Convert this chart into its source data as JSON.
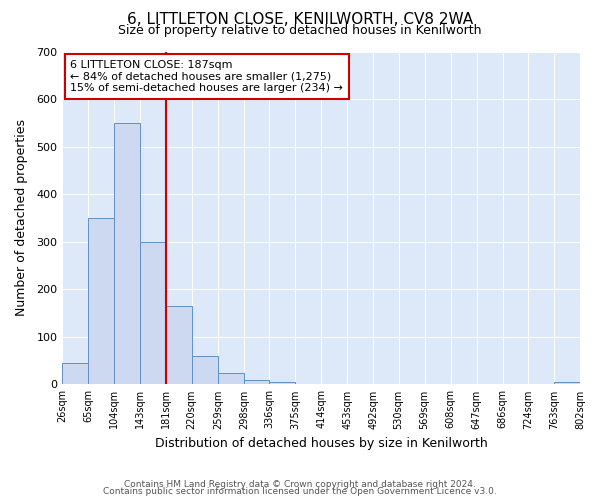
{
  "title": "6, LITTLETON CLOSE, KENILWORTH, CV8 2WA",
  "subtitle": "Size of property relative to detached houses in Kenilworth",
  "xlabel": "Distribution of detached houses by size in Kenilworth",
  "ylabel": "Number of detached properties",
  "footer_line1": "Contains HM Land Registry data © Crown copyright and database right 2024.",
  "footer_line2": "Contains public sector information licensed under the Open Government Licence v3.0.",
  "bin_edges": [
    26,
    65,
    104,
    143,
    181,
    220,
    259,
    298,
    336,
    375,
    414,
    453,
    492,
    530,
    569,
    608,
    647,
    686,
    724,
    763,
    802
  ],
  "bin_labels": [
    "26sqm",
    "65sqm",
    "104sqm",
    "143sqm",
    "181sqm",
    "220sqm",
    "259sqm",
    "298sqm",
    "336sqm",
    "375sqm",
    "414sqm",
    "453sqm",
    "492sqm",
    "530sqm",
    "569sqm",
    "608sqm",
    "647sqm",
    "686sqm",
    "724sqm",
    "763sqm",
    "802sqm"
  ],
  "bar_heights": [
    45,
    350,
    550,
    300,
    165,
    60,
    25,
    10,
    5,
    0,
    0,
    0,
    0,
    0,
    0,
    0,
    0,
    0,
    0,
    5
  ],
  "bar_color": "#cdd9f0",
  "bar_edge_color": "#6090c8",
  "property_line_x": 181,
  "property_line_color": "#cc0000",
  "annotation_line1": "6 LITTLETON CLOSE: 187sqm",
  "annotation_line2": "← 84% of detached houses are smaller (1,275)",
  "annotation_line3": "15% of semi-detached houses are larger (234) →",
  "annotation_box_color": "#cc0000",
  "ylim": [
    0,
    700
  ],
  "background_color": "#ffffff",
  "plot_bg_color": "#dde8f8",
  "grid_color": "#ffffff",
  "yticks": [
    0,
    100,
    200,
    300,
    400,
    500,
    600,
    700
  ]
}
